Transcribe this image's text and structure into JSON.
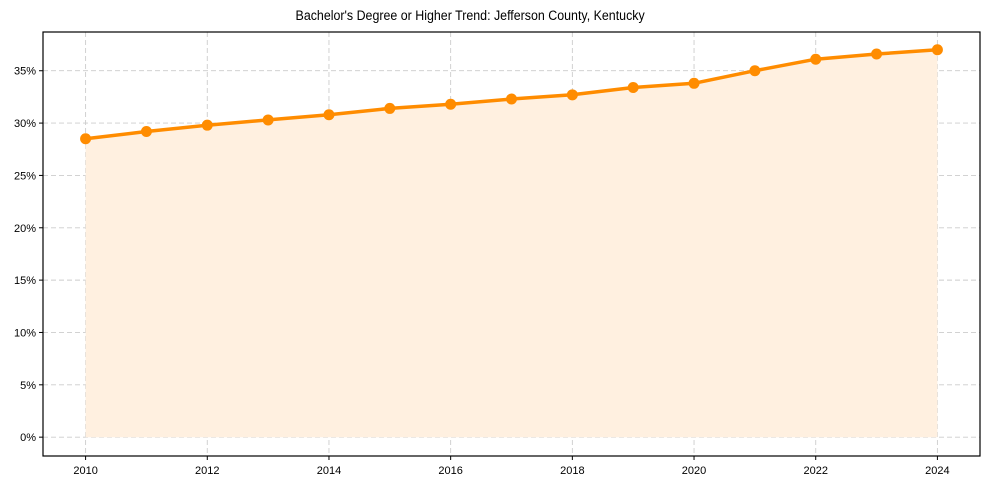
{
  "chart_data": {
    "type": "line",
    "title": "Bachelor's Degree or Higher Trend: Jefferson County, Kentucky",
    "xlabel": "",
    "ylabel": "",
    "x": [
      2010,
      2011,
      2012,
      2013,
      2014,
      2015,
      2016,
      2017,
      2018,
      2019,
      2020,
      2021,
      2022,
      2023,
      2024
    ],
    "series": [
      {
        "name": "Bachelor's Degree or Higher (%)",
        "values": [
          28.5,
          29.2,
          29.8,
          30.3,
          30.8,
          31.4,
          31.8,
          32.3,
          32.7,
          33.4,
          33.8,
          35.0,
          36.1,
          36.6,
          37.0
        ],
        "color": "#ff8c00",
        "fill": "#fff0e0",
        "marker": "circle"
      }
    ],
    "xticks": [
      2010,
      2012,
      2014,
      2016,
      2018,
      2020,
      2022,
      2024
    ],
    "yticks": [
      0,
      5,
      10,
      15,
      20,
      25,
      30,
      35
    ],
    "ytick_labels": [
      "0%",
      "5%",
      "10%",
      "15%",
      "20%",
      "25%",
      "30%",
      "35%"
    ],
    "xlim": [
      2009.3,
      2024.7
    ],
    "ylim": [
      -1.8,
      38.7
    ],
    "grid": true,
    "legend": null
  }
}
